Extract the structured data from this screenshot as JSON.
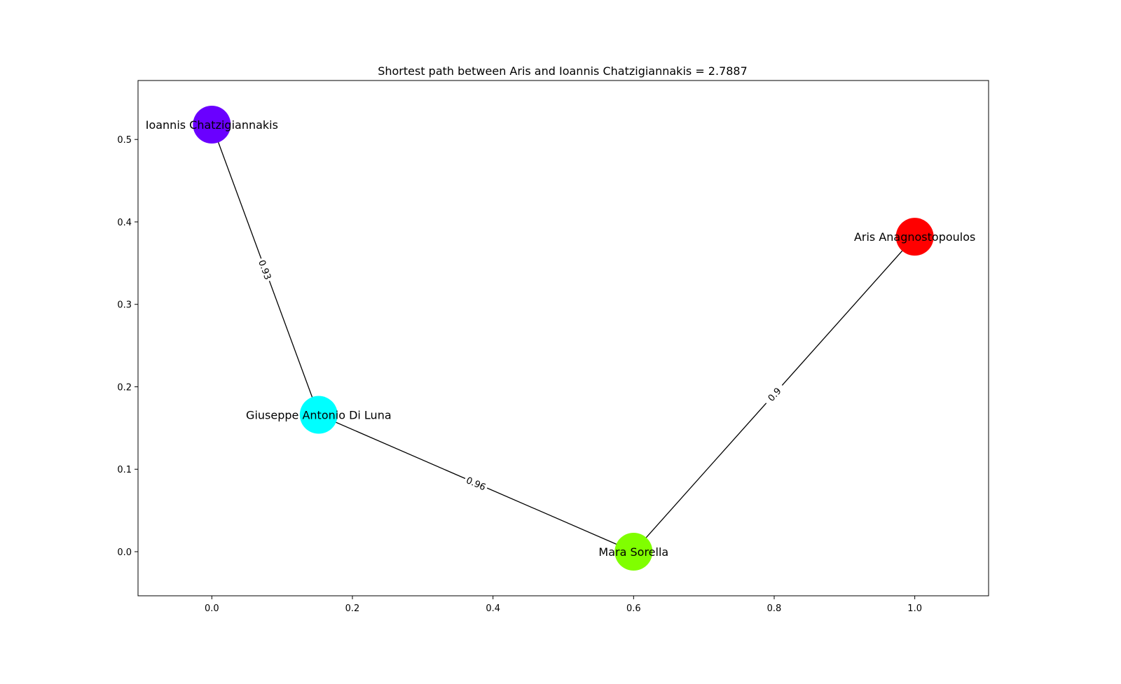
{
  "chart_data": {
    "type": "network",
    "title": "Shortest path between Aris and Ioannis Chatzigiannakis = 2.7887",
    "xlabel": "",
    "ylabel": "",
    "xlim": [
      -0.105,
      1.105
    ],
    "ylim": [
      -0.0535,
      0.5715
    ],
    "xticks": [
      0.0,
      0.2,
      0.4,
      0.6,
      0.8,
      1.0
    ],
    "xtick_labels": [
      "0.0",
      "0.2",
      "0.4",
      "0.6",
      "0.8",
      "1.0"
    ],
    "yticks": [
      0.0,
      0.1,
      0.2,
      0.3,
      0.4,
      0.5
    ],
    "ytick_labels": [
      "0.0",
      "0.1",
      "0.2",
      "0.3",
      "0.4",
      "0.5"
    ],
    "grid": false,
    "nodes": [
      {
        "id": "ioannis",
        "label": "Ioannis Chatzigiannakis",
        "x": 0.0,
        "y": 0.518,
        "color": "#6a00ff"
      },
      {
        "id": "giuseppe",
        "label": "Giuseppe Antonio Di Luna",
        "x": 0.152,
        "y": 0.166,
        "color": "#00ffff"
      },
      {
        "id": "mara",
        "label": "Mara Sorella",
        "x": 0.6,
        "y": 0.0,
        "color": "#80ff00"
      },
      {
        "id": "aris",
        "label": "Aris Anagnostopoulos",
        "x": 1.0,
        "y": 0.382,
        "color": "#ff0000"
      }
    ],
    "edges": [
      {
        "source": "ioannis",
        "target": "giuseppe",
        "weight": "0.93"
      },
      {
        "source": "giuseppe",
        "target": "mara",
        "weight": "0.96"
      },
      {
        "source": "mara",
        "target": "aris",
        "weight": "0.9"
      }
    ]
  }
}
